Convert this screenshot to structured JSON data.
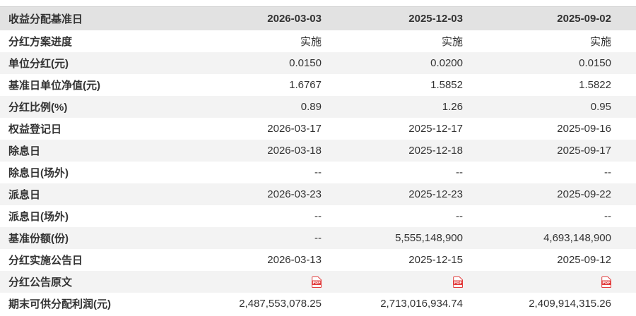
{
  "table": {
    "header": {
      "label": "收益分配基准日",
      "columns": [
        "2026-03-03",
        "2025-12-03",
        "2025-09-02"
      ]
    },
    "rows": [
      {
        "label": "分红方案进度",
        "values": [
          "实施",
          "实施",
          "实施"
        ]
      },
      {
        "label": "单位分红(元)",
        "values": [
          "0.0150",
          "0.0200",
          "0.0150"
        ]
      },
      {
        "label": "基准日单位净值(元)",
        "values": [
          "1.6767",
          "1.5852",
          "1.5822"
        ]
      },
      {
        "label": "分红比例(%)",
        "values": [
          "0.89",
          "1.26",
          "0.95"
        ]
      },
      {
        "label": "权益登记日",
        "values": [
          "2026-03-17",
          "2025-12-17",
          "2025-09-16"
        ]
      },
      {
        "label": "除息日",
        "values": [
          "2026-03-18",
          "2025-12-18",
          "2025-09-17"
        ]
      },
      {
        "label": "除息日(场外)",
        "values": [
          "--",
          "--",
          "--"
        ]
      },
      {
        "label": "派息日",
        "values": [
          "2026-03-23",
          "2025-12-23",
          "2025-09-22"
        ]
      },
      {
        "label": "派息日(场外)",
        "values": [
          "--",
          "--",
          "--"
        ]
      },
      {
        "label": "基准份额(份)",
        "values": [
          "--",
          "5,555,148,900",
          "4,693,148,900"
        ]
      },
      {
        "label": "分红实施公告日",
        "values": [
          "2026-03-13",
          "2025-12-15",
          "2025-09-12"
        ]
      },
      {
        "label": "分红公告原文",
        "type": "pdf",
        "values": [
          "pdf-icon",
          "pdf-icon",
          "pdf-icon"
        ]
      },
      {
        "label": "期末可供分配利润(元)",
        "values": [
          "2,487,553,078.25",
          "2,713,016,934.74",
          "2,409,914,315.26"
        ]
      }
    ],
    "pdf_icon": {
      "name": "pdf-icon",
      "label": "PDF"
    },
    "colors": {
      "header_bg": "#e2e2e2",
      "alt_row_bg": "#f3f3f3",
      "text": "#333333",
      "pdf_red": "#e23c3c",
      "border": "#cfcfcf"
    }
  }
}
